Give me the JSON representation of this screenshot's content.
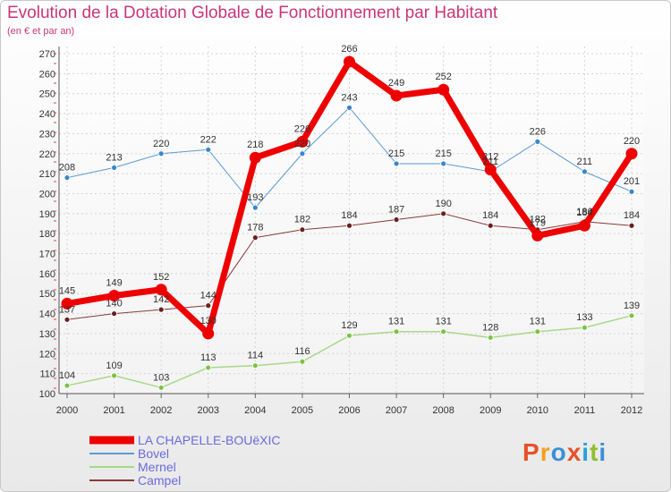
{
  "header": {
    "title": "Evolution de la Dotation Globale de Fonctionnement par Habitant",
    "subtitle": "(en € et par an)"
  },
  "logo": {
    "text": "Proxiti",
    "colors": [
      "#e8502a",
      "#f0a020",
      "#3a8fd8",
      "#e8502a",
      "#2aa0d8",
      "#90c030",
      "#3a8fd8"
    ]
  },
  "chart_data": {
    "type": "line",
    "title": "Evolution de la Dotation Globale de Fonctionnement par Habitant",
    "subtitle": "(en € et par an)",
    "x": [
      "2000",
      "2001",
      "2002",
      "2003",
      "2004",
      "2005",
      "2006",
      "2007",
      "2008",
      "2009",
      "2010",
      "2011",
      "2012"
    ],
    "ylim": [
      100,
      270
    ],
    "yticks": [
      100,
      110,
      120,
      130,
      140,
      150,
      160,
      170,
      180,
      190,
      200,
      210,
      220,
      230,
      240,
      250,
      260,
      270
    ],
    "grid": true,
    "legend_position": "bottom-left",
    "series": [
      {
        "name": "Bovel",
        "color": "#5b9bd5",
        "point_color": "#3a87c9",
        "width": 1,
        "values": [
          208,
          213,
          220,
          222,
          193,
          220,
          243,
          215,
          215,
          211,
          226,
          211,
          201
        ]
      },
      {
        "name": "Mernel",
        "color": "#a8d888",
        "point_color": "#7cc444",
        "width": 1.5,
        "values": [
          104,
          109,
          103,
          113,
          114,
          116,
          129,
          131,
          131,
          128,
          131,
          133,
          139
        ]
      },
      {
        "name": "Campel",
        "color": "#8a3a3a",
        "point_color": "#6a2020",
        "width": 1,
        "values": [
          137,
          140,
          142,
          144,
          178,
          182,
          184,
          187,
          190,
          184,
          182,
          186,
          184
        ]
      },
      {
        "name": "LA CHAPELLE-BOUëXIC",
        "color": "#ee0000",
        "point_color": "#ee0000",
        "width": 7,
        "values": [
          145,
          149,
          152,
          130,
          218,
          226,
          266,
          249,
          252,
          212,
          179,
          184,
          220
        ]
      }
    ],
    "legend_order": [
      "LA CHAPELLE-BOUëXIC",
      "Bovel",
      "Mernel",
      "Campel"
    ]
  }
}
